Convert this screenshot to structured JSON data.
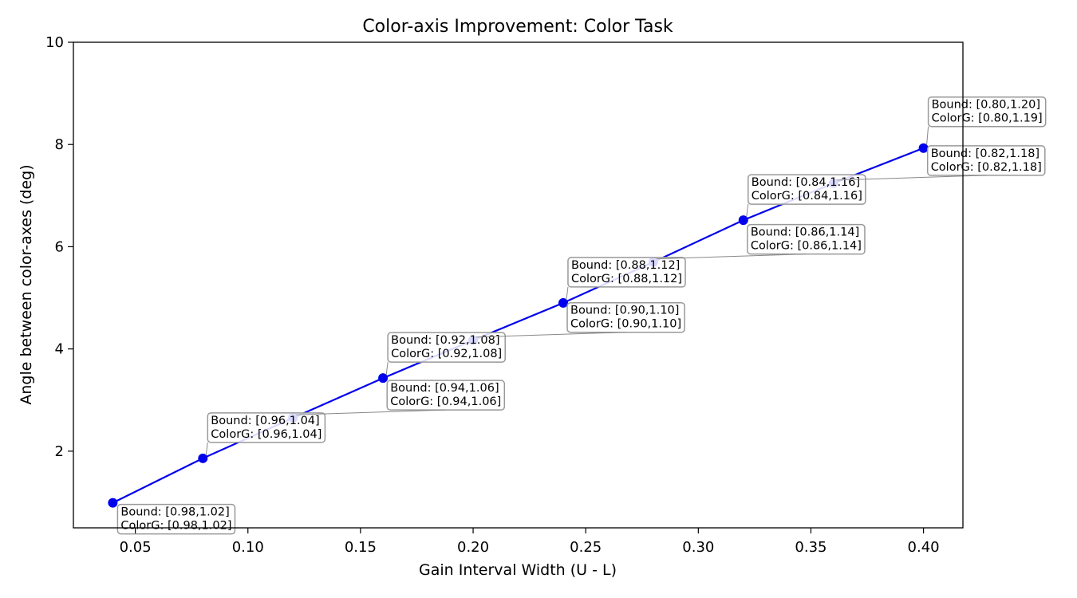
{
  "chart_data": {
    "type": "line",
    "title": "Color-axis Improvement: Color Task",
    "xlabel": "Gain Interval Width (U - L)",
    "ylabel": "Angle between color-axes (deg)",
    "xlim": [
      0.0225,
      0.4175
    ],
    "ylim": [
      0.5,
      10
    ],
    "xticks": [
      0.05,
      0.1,
      0.15,
      0.2,
      0.25,
      0.3,
      0.35,
      0.4
    ],
    "xtick_labels": [
      "0.05",
      "0.10",
      "0.15",
      "0.20",
      "0.25",
      "0.30",
      "0.35",
      "0.40"
    ],
    "yticks": [
      2,
      4,
      6,
      8,
      10
    ],
    "ytick_labels": [
      "2",
      "4",
      "6",
      "8",
      "10"
    ],
    "grid": false,
    "series": [
      {
        "color": "#0000ee",
        "marker": "circle",
        "x": [
          0.04,
          0.08,
          0.12,
          0.16,
          0.2,
          0.24,
          0.28,
          0.32,
          0.36,
          0.4
        ],
        "y": [
          0.99,
          1.86,
          2.65,
          3.43,
          4.17,
          4.9,
          5.7,
          6.52,
          7.24,
          7.93
        ]
      }
    ],
    "annotations": [
      {
        "line1": "Bound: [0.98,1.02]",
        "line2": "ColorG: [0.98,1.02]",
        "point": 0
      },
      {
        "line1": "Bound: [0.96,1.04]",
        "line2": "ColorG: [0.96,1.04]",
        "point": 1
      },
      {
        "line1": "Bound: [0.94,1.06]",
        "line2": "ColorG: [0.94,1.06]",
        "point": 2
      },
      {
        "line1": "Bound: [0.92,1.08]",
        "line2": "ColorG: [0.92,1.08]",
        "point": 3
      },
      {
        "line1": "Bound: [0.90,1.10]",
        "line2": "ColorG: [0.90,1.10]",
        "point": 4
      },
      {
        "line1": "Bound: [0.88,1.12]",
        "line2": "ColorG: [0.88,1.12]",
        "point": 5
      },
      {
        "line1": "Bound: [0.86,1.14]",
        "line2": "ColorG: [0.86,1.14]",
        "point": 6
      },
      {
        "line1": "Bound: [0.84,1.16]",
        "line2": "ColorG: [0.84,1.16]",
        "point": 7
      },
      {
        "line1": "Bound: [0.82,1.18]",
        "line2": "ColorG: [0.82,1.18]",
        "point": 8
      },
      {
        "line1": "Bound: [0.80,1.20]",
        "line2": "ColorG: [0.80,1.19]",
        "point": 9
      }
    ]
  }
}
